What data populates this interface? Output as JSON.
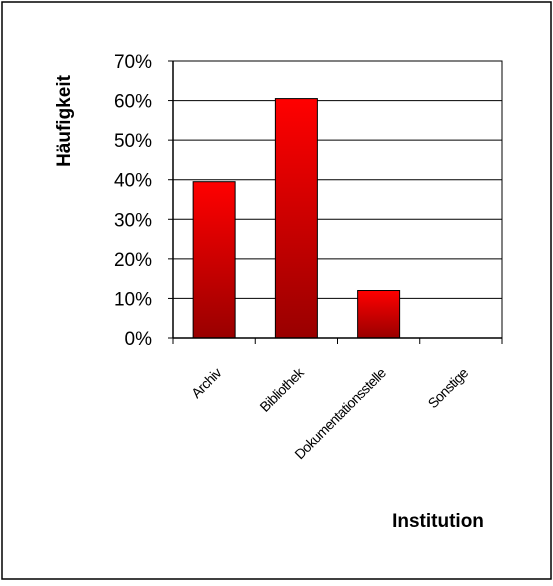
{
  "chart_data": {
    "type": "bar",
    "categories": [
      "Archiv",
      "Bibliothek",
      "Dokumentationsstelle",
      "Sonstige"
    ],
    "values": [
      39.5,
      60.5,
      12,
      0
    ],
    "title": "",
    "xlabel": "Institution",
    "ylabel": "Häufigkeit",
    "ylim": [
      0,
      70
    ],
    "ytick_values": [
      0,
      10,
      20,
      30,
      40,
      50,
      60,
      70
    ],
    "ytick_labels": [
      "0%",
      "10%",
      "20%",
      "30%",
      "40%",
      "50%",
      "60%",
      "70%"
    ],
    "grid": true,
    "legend": "none",
    "colors": {
      "bar_top": "#ff0000",
      "bar_bottom": "#990000",
      "bar_edge": "#000000",
      "grid": "#000000",
      "frame": "#000000"
    }
  }
}
